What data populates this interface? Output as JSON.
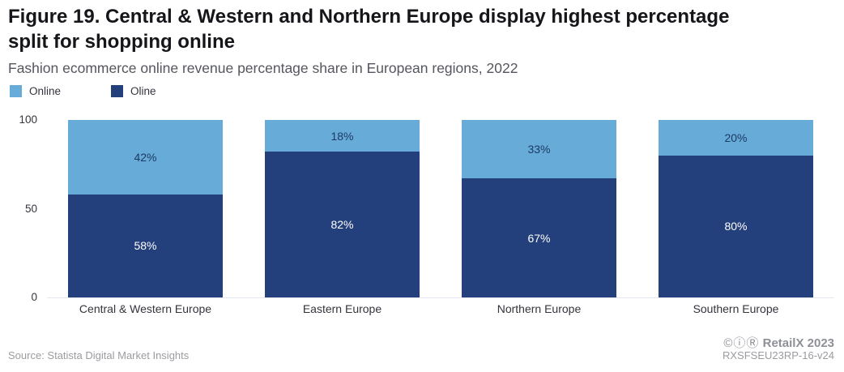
{
  "header": {
    "title": "Figure 19. Central & Western and Northern Europe display highest percentage split for shopping online",
    "subtitle": "Fashion ecommerce online revenue percentage share in European regions, 2022"
  },
  "legend": [
    {
      "label": "Online",
      "color": "#67abd8"
    },
    {
      "label": "Oline",
      "color": "#24407c"
    }
  ],
  "chart_data": {
    "type": "bar",
    "stacked": true,
    "title": "Figure 19. Central & Western and Northern Europe display highest percentage split for shopping online",
    "subtitle": "Fashion ecommerce online revenue percentage share in European regions, 2022",
    "categories": [
      "Central & Western Europe",
      "Eastern Europe",
      "Northern Europe",
      "Southern Europe"
    ],
    "series": [
      {
        "name": "Online",
        "color": "#67abd8",
        "label_color": "#1d3a63",
        "values": [
          42,
          18,
          33,
          20
        ]
      },
      {
        "name": "Oline",
        "color": "#24407c",
        "label_color": "#ffffff",
        "values": [
          58,
          82,
          67,
          80
        ]
      }
    ],
    "value_suffix": "%",
    "xlabel": "",
    "ylabel": "",
    "ylim": [
      0,
      100
    ],
    "yticks": [
      0,
      50,
      100
    ],
    "grid": false,
    "legend_position": "top-left"
  },
  "footer": {
    "source": "Source: Statista Digital Market Insights",
    "license_icons": "©ⓘⓇ",
    "attribution": "RetailX 2023",
    "code": "RXSFSEU23RP-16-v24"
  }
}
